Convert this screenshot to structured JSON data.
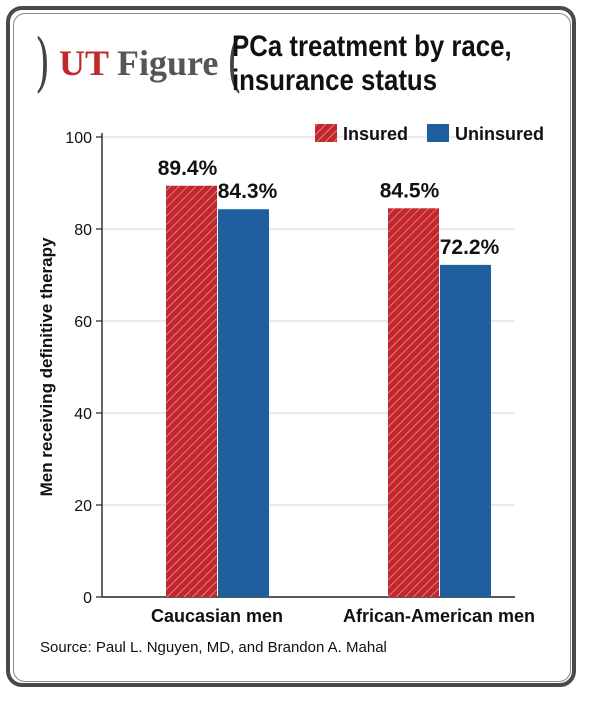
{
  "header": {
    "brand_ut": "UT",
    "brand_figure": "Figure",
    "title_line1": "PCa treatment by race,",
    "title_line2": "insurance status"
  },
  "source": "Source: Paul L. Nguyen, MD, and Brandon A. Mahal",
  "colors": {
    "insured": "#c1272d",
    "uninsured": "#1f5f9e",
    "frame": "#4a4a4a",
    "brand_red": "#c1272d"
  },
  "chart_data": {
    "type": "bar",
    "categories": [
      "Caucasian men",
      "African-American men"
    ],
    "series": [
      {
        "name": "Insured",
        "values": [
          89.4,
          84.5
        ],
        "labels": [
          "89.4%",
          "84.5%"
        ],
        "pattern": "hatched"
      },
      {
        "name": "Uninsured",
        "values": [
          84.3,
          72.2
        ],
        "labels": [
          "84.3%",
          "72.2%"
        ],
        "pattern": "solid"
      }
    ],
    "ylabel": "Men receiving definitive therapy",
    "xlabel": "",
    "ylim": [
      0,
      100
    ],
    "yticks": [
      0,
      20,
      40,
      60,
      80,
      100
    ],
    "grid": true,
    "legend_position": "top-right"
  }
}
